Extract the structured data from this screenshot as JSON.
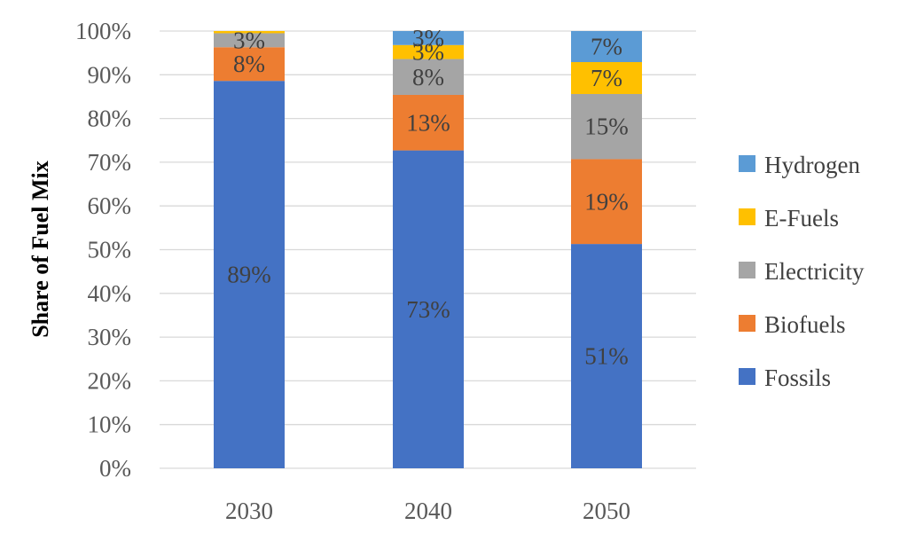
{
  "chart_data": {
    "type": "bar",
    "stacked": true,
    "categories": [
      "2030",
      "2040",
      "2050"
    ],
    "ylabel": "Share of Fuel Mix",
    "xlabel": "",
    "ylim": [
      0,
      100
    ],
    "y_ticks": [
      "0%",
      "10%",
      "20%",
      "30%",
      "40%",
      "50%",
      "60%",
      "70%",
      "80%",
      "90%",
      "100%"
    ],
    "grid": "horizontal",
    "legend_position": "right",
    "series": [
      {
        "name": "Fossils",
        "color": "#4472C4",
        "values": [
          88.6,
          72.7,
          51.3
        ],
        "labels": [
          "89%",
          "73%",
          "51%"
        ]
      },
      {
        "name": "Biofuels",
        "color": "#ED7D31",
        "values": [
          7.7,
          12.7,
          19.4
        ],
        "labels": [
          "8%",
          "13%",
          "19%"
        ]
      },
      {
        "name": "Electricity",
        "color": "#A5A5A5",
        "values": [
          3.2,
          8.2,
          14.9
        ],
        "labels": [
          "3%",
          "8%",
          "15%"
        ]
      },
      {
        "name": "E-Fuels",
        "color": "#FFC000",
        "values": [
          0.5,
          3.2,
          7.3
        ],
        "labels": [
          "",
          "3%",
          "7%"
        ]
      },
      {
        "name": "Hydrogen",
        "color": "#5B9BD5",
        "values": [
          0.0,
          3.2,
          7.1
        ],
        "labels": [
          "",
          "3%",
          "7%"
        ]
      }
    ]
  }
}
